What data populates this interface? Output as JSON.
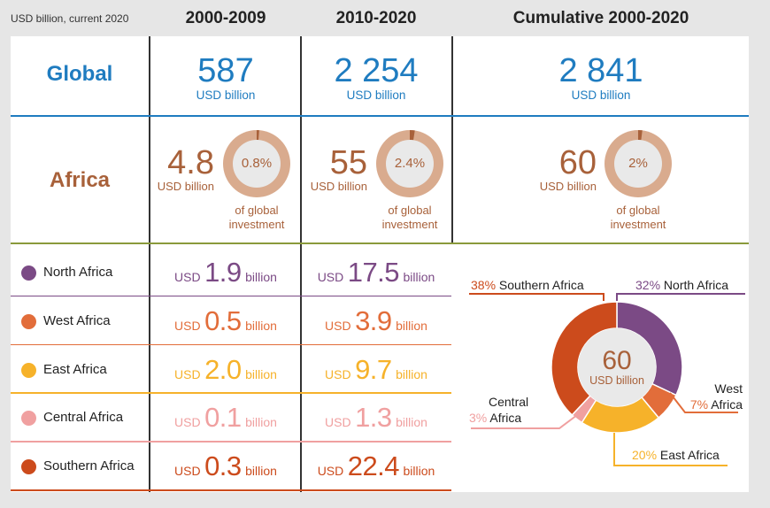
{
  "header": {
    "units_note": "USD billion, current 2020",
    "col1": "2000-2009",
    "col2": "2010-2020",
    "col3": "Cumulative 2000-2020"
  },
  "global": {
    "label": "Global",
    "unit": "USD billion",
    "values": [
      "587",
      "2 254",
      "2 841"
    ]
  },
  "africa": {
    "label": "Africa",
    "unit": "USD billion",
    "of_global_1": "of global",
    "of_global_2": "investment",
    "values": [
      "4.8",
      "55",
      "60"
    ],
    "shares": [
      "0.8%",
      "2.4%",
      "2%"
    ],
    "share_fractions": [
      0.008,
      0.024,
      0.02
    ]
  },
  "subregions": [
    {
      "name": "North Africa",
      "color": "#7b4a85",
      "v1": "1.9",
      "v2": "17.5"
    },
    {
      "name": "West Africa",
      "color": "#e26d3a",
      "v1": "0.5",
      "v2": "3.9"
    },
    {
      "name": "East Africa",
      "color": "#f6b22a",
      "v1": "2.0",
      "v2": "9.7"
    },
    {
      "name": "Central Africa",
      "color": "#f0a0a0",
      "v1": "0.1",
      "v2": "1.3"
    },
    {
      "name": "Southern Africa",
      "color": "#cc4b1c",
      "v1": "0.3",
      "v2": "22.4"
    }
  ],
  "value_prefix": "USD",
  "value_suffix": "billion",
  "colors": {
    "global_blue": "#1f7cc0",
    "africa_brown": "#a8613a",
    "ring": "#d9ab8e",
    "ring_center": "#e9e9e9",
    "ring_slice": "#a8613a"
  },
  "chart_data": {
    "type": "pie",
    "center_value": "60",
    "center_unit": "USD billion",
    "slices": [
      {
        "label": "North Africa",
        "pct_label": "32%",
        "value": 32,
        "color": "#7b4a85"
      },
      {
        "label_1": "West",
        "label_2": "Africa",
        "label": "West Africa",
        "pct_label": "7%",
        "value": 7,
        "color": "#e26d3a"
      },
      {
        "label": "East Africa",
        "pct_label": "20%",
        "value": 20,
        "color": "#f6b22a"
      },
      {
        "label_1": "Central",
        "label_2": "Africa",
        "label": "Central Africa",
        "pct_label": "3%",
        "value": 3,
        "color": "#f0a0a0"
      },
      {
        "label": "Southern Africa",
        "pct_label": "38%",
        "value": 38,
        "color": "#cc4b1c"
      }
    ]
  }
}
